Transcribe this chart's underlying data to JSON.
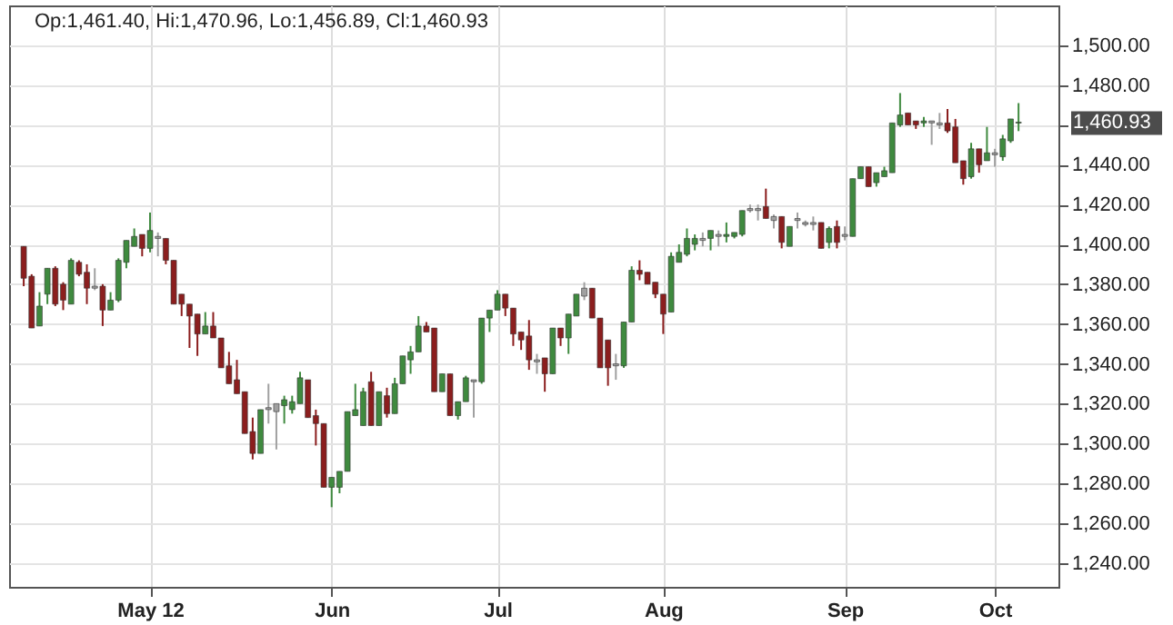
{
  "chart_data": {
    "type": "candlestick",
    "categories": [
      null,
      null,
      null,
      null,
      null,
      null,
      null,
      null,
      null,
      null,
      null,
      null,
      null,
      null,
      null,
      null,
      "May 12",
      null,
      null,
      null,
      null,
      null,
      null,
      null,
      null,
      null,
      null,
      null,
      null,
      null,
      null,
      null,
      null,
      null,
      null,
      null,
      null,
      null,
      null,
      "Jun",
      null,
      null,
      null,
      null,
      null,
      null,
      null,
      null,
      null,
      null,
      null,
      null,
      null,
      null,
      null,
      null,
      null,
      null,
      null,
      null,
      "Jul",
      null,
      null,
      null,
      null,
      null,
      null,
      null,
      null,
      null,
      null,
      null,
      null,
      null,
      null,
      null,
      null,
      null,
      null,
      null,
      null,
      "Aug",
      null,
      null,
      null,
      null,
      null,
      null,
      null,
      null,
      null,
      null,
      null,
      null,
      null,
      null,
      null,
      null,
      null,
      null,
      null,
      null,
      null,
      null,
      "Sep",
      null,
      null,
      null,
      null,
      null,
      null,
      null,
      null,
      null,
      null,
      null,
      null,
      null,
      null,
      null,
      null,
      null,
      null,
      "Oct",
      null,
      null,
      null
    ],
    "ohlc": [
      [
        1399,
        1399,
        1379,
        1383
      ],
      [
        1384,
        1385,
        1358,
        1358
      ],
      [
        1359,
        1376,
        1359,
        1369
      ],
      [
        1375,
        1388,
        1370,
        1388
      ],
      [
        1388,
        1389,
        1369,
        1370
      ],
      [
        1380,
        1381,
        1367,
        1372
      ],
      [
        1370,
        1393,
        1370,
        1392
      ],
      [
        1391,
        1392,
        1384,
        1385
      ],
      [
        1386,
        1390,
        1370,
        1378
      ],
      [
        1379,
        1388,
        1377,
        1378
      ],
      [
        1379,
        1380,
        1359,
        1367
      ],
      [
        1367,
        1376,
        1367,
        1372
      ],
      [
        1372,
        1393,
        1371,
        1392
      ],
      [
        1391,
        1402,
        1388,
        1402
      ],
      [
        1399,
        1408,
        1399,
        1404
      ],
      [
        1405,
        1405,
        1394,
        1398
      ],
      [
        1398,
        1416,
        1396,
        1407
      ],
      [
        1404,
        1406,
        1394,
        1403
      ],
      [
        1403,
        1403,
        1390,
        1392
      ],
      [
        1392,
        1392,
        1370,
        1370
      ],
      [
        1375,
        1375,
        1364,
        1370
      ],
      [
        1370,
        1370,
        1348,
        1364
      ],
      [
        1365,
        1365,
        1344,
        1355
      ],
      [
        1355,
        1366,
        1355,
        1359
      ],
      [
        1359,
        1366,
        1353,
        1353
      ],
      [
        1353,
        1353,
        1338,
        1338
      ],
      [
        1339,
        1346,
        1330,
        1330
      ],
      [
        1332,
        1342,
        1325,
        1325
      ],
      [
        1326,
        1326,
        1305,
        1305
      ],
      [
        1306,
        1313,
        1292,
        1295
      ],
      [
        1295,
        1317,
        1295,
        1317
      ],
      [
        1318,
        1330,
        1310,
        1317
      ],
      [
        1316,
        1320,
        1297,
        1320
      ],
      [
        1319,
        1324,
        1310,
        1322
      ],
      [
        1317,
        1324,
        1315,
        1321
      ],
      [
        1320,
        1336,
        1320,
        1333
      ],
      [
        1332,
        1332,
        1313,
        1313
      ],
      [
        1314,
        1317,
        1299,
        1310
      ],
      [
        1310,
        1310,
        1278,
        1278
      ],
      [
        1278,
        1283,
        1268,
        1283
      ],
      [
        1278,
        1286,
        1275,
        1286
      ],
      [
        1286,
        1316,
        1286,
        1316
      ],
      [
        1314,
        1330,
        1314,
        1317
      ],
      [
        1309,
        1328,
        1309,
        1326
      ],
      [
        1331,
        1336,
        1309,
        1309
      ],
      [
        1309,
        1326,
        1309,
        1326
      ],
      [
        1324,
        1328,
        1313,
        1315
      ],
      [
        1315,
        1333,
        1315,
        1330
      ],
      [
        1330,
        1344,
        1330,
        1344
      ],
      [
        1342,
        1349,
        1335,
        1346
      ],
      [
        1346,
        1364,
        1346,
        1359
      ],
      [
        1359,
        1361,
        1356,
        1356
      ],
      [
        1358,
        1358,
        1326,
        1326
      ],
      [
        1326,
        1335,
        1326,
        1335
      ],
      [
        1335,
        1335,
        1314,
        1314
      ],
      [
        1314,
        1321,
        1312,
        1321
      ],
      [
        1321,
        1334,
        1321,
        1333
      ],
      [
        1332,
        1332,
        1313,
        1331
      ],
      [
        1331,
        1363,
        1330,
        1363
      ],
      [
        1363,
        1367,
        1356,
        1367
      ],
      [
        1367,
        1377,
        1367,
        1375
      ],
      [
        1375,
        1375,
        1364,
        1368
      ],
      [
        1368,
        1368,
        1349,
        1355
      ],
      [
        1356,
        1356,
        1347,
        1352
      ],
      [
        1354,
        1362,
        1337,
        1342
      ],
      [
        1342,
        1345,
        1335,
        1341
      ],
      [
        1343,
        1343,
        1326,
        1335
      ],
      [
        1335,
        1358,
        1335,
        1358
      ],
      [
        1358,
        1358,
        1349,
        1353
      ],
      [
        1353,
        1365,
        1345,
        1365
      ],
      [
        1364,
        1375,
        1364,
        1375
      ],
      [
        1374,
        1381,
        1372,
        1378
      ],
      [
        1378,
        1378,
        1363,
        1363
      ],
      [
        1363,
        1363,
        1338,
        1338
      ],
      [
        1352,
        1352,
        1329,
        1338
      ],
      [
        1340,
        1345,
        1332,
        1339
      ],
      [
        1339,
        1361,
        1338,
        1361
      ],
      [
        1361,
        1389,
        1361,
        1387
      ],
      [
        1387,
        1392,
        1382,
        1385
      ],
      [
        1386,
        1386,
        1380,
        1380
      ],
      [
        1381,
        1381,
        1373,
        1375
      ],
      [
        1375,
        1375,
        1355,
        1365
      ],
      [
        1366,
        1396,
        1366,
        1394
      ],
      [
        1391,
        1400,
        1391,
        1396
      ],
      [
        1395,
        1408,
        1394,
        1403
      ],
      [
        1400,
        1405,
        1397,
        1403
      ],
      [
        1403,
        1406,
        1399,
        1402
      ],
      [
        1403,
        1407,
        1397,
        1407
      ],
      [
        1404,
        1407,
        1399,
        1405
      ],
      [
        1404,
        1411,
        1401,
        1405
      ],
      [
        1404,
        1406,
        1403,
        1406
      ],
      [
        1405,
        1417,
        1404,
        1417
      ],
      [
        1417,
        1420,
        1416,
        1418
      ],
      [
        1417,
        1420,
        1412,
        1418
      ],
      [
        1419,
        1428,
        1413,
        1413
      ],
      [
        1414,
        1415,
        1408,
        1412
      ],
      [
        1414,
        1414,
        1398,
        1401
      ],
      [
        1399,
        1409,
        1399,
        1409
      ],
      [
        1412,
        1416,
        1408,
        1413
      ],
      [
        1410,
        1412,
        1409,
        1411
      ],
      [
        1411,
        1414,
        1407,
        1410
      ],
      [
        1411,
        1411,
        1398,
        1398
      ],
      [
        1401,
        1409,
        1398,
        1408
      ],
      [
        1409,
        1412,
        1398,
        1401
      ],
      [
        1404,
        1409,
        1402,
        1405
      ],
      [
        1404,
        1433,
        1404,
        1433
      ],
      [
        1433,
        1439,
        1433,
        1439
      ],
      [
        1439,
        1439,
        1429,
        1429
      ],
      [
        1431,
        1436,
        1429,
        1436
      ],
      [
        1434,
        1439,
        1434,
        1437
      ],
      [
        1436,
        1461,
        1436,
        1461
      ],
      [
        1460,
        1476,
        1459,
        1465
      ],
      [
        1466,
        1466,
        1460,
        1460
      ],
      [
        1462,
        1462,
        1458,
        1460
      ],
      [
        1461,
        1464,
        1459,
        1462
      ],
      [
        1462,
        1462,
        1450,
        1461
      ],
      [
        1460,
        1466,
        1458,
        1461
      ],
      [
        1461,
        1468,
        1456,
        1457
      ],
      [
        1459,
        1463,
        1441,
        1441
      ],
      [
        1442,
        1442,
        1430,
        1433
      ],
      [
        1434,
        1451,
        1433,
        1448
      ],
      [
        1448,
        1448,
        1436,
        1440
      ],
      [
        1442,
        1459,
        1442,
        1446
      ],
      [
        1446,
        1448,
        1439,
        1445
      ],
      [
        1444,
        1455,
        1442,
        1453
      ],
      [
        1452,
        1463,
        1451,
        1463
      ],
      [
        1461.4,
        1470.96,
        1456.89,
        1460.93
      ]
    ],
    "colors": [
      "#8b1e1e",
      "#8b1e1e",
      "#3f8a3f",
      "#3f8a3f",
      "#8b1e1e",
      "#8b1e1e",
      "#3f8a3f",
      "#8b1e1e",
      "#8b1e1e",
      "#a0a0a0",
      "#8b1e1e",
      "#3f8a3f",
      "#3f8a3f",
      "#3f8a3f",
      "#3f8a3f",
      "#8b1e1e",
      "#3f8a3f",
      "#a0a0a0",
      "#8b1e1e",
      "#8b1e1e",
      "#8b1e1e",
      "#8b1e1e",
      "#8b1e1e",
      "#3f8a3f",
      "#8b1e1e",
      "#8b1e1e",
      "#8b1e1e",
      "#8b1e1e",
      "#8b1e1e",
      "#8b1e1e",
      "#3f8a3f",
      "#a0a0a0",
      "#a0a0a0",
      "#3f8a3f",
      "#3f8a3f",
      "#3f8a3f",
      "#8b1e1e",
      "#8b1e1e",
      "#8b1e1e",
      "#3f8a3f",
      "#3f8a3f",
      "#3f8a3f",
      "#3f8a3f",
      "#3f8a3f",
      "#8b1e1e",
      "#3f8a3f",
      "#8b1e1e",
      "#3f8a3f",
      "#3f8a3f",
      "#3f8a3f",
      "#3f8a3f",
      "#8b1e1e",
      "#8b1e1e",
      "#3f8a3f",
      "#8b1e1e",
      "#3f8a3f",
      "#3f8a3f",
      "#a0a0a0",
      "#3f8a3f",
      "#3f8a3f",
      "#3f8a3f",
      "#8b1e1e",
      "#8b1e1e",
      "#8b1e1e",
      "#8b1e1e",
      "#a0a0a0",
      "#8b1e1e",
      "#3f8a3f",
      "#8b1e1e",
      "#3f8a3f",
      "#3f8a3f",
      "#a0a0a0",
      "#8b1e1e",
      "#8b1e1e",
      "#8b1e1e",
      "#a0a0a0",
      "#3f8a3f",
      "#3f8a3f",
      "#8b1e1e",
      "#8b1e1e",
      "#8b1e1e",
      "#8b1e1e",
      "#3f8a3f",
      "#3f8a3f",
      "#3f8a3f",
      "#3f8a3f",
      "#a0a0a0",
      "#3f8a3f",
      "#a0a0a0",
      "#3f8a3f",
      "#3f8a3f",
      "#3f8a3f",
      "#a0a0a0",
      "#a0a0a0",
      "#8b1e1e",
      "#a0a0a0",
      "#8b1e1e",
      "#3f8a3f",
      "#a0a0a0",
      "#a0a0a0",
      "#a0a0a0",
      "#8b1e1e",
      "#3f8a3f",
      "#8b1e1e",
      "#a0a0a0",
      "#3f8a3f",
      "#3f8a3f",
      "#8b1e1e",
      "#3f8a3f",
      "#3f8a3f",
      "#3f8a3f",
      "#3f8a3f",
      "#8b1e1e",
      "#8b1e1e",
      "#3f8a3f",
      "#a0a0a0",
      "#a0a0a0",
      "#8b1e1e",
      "#8b1e1e",
      "#8b1e1e",
      "#3f8a3f",
      "#8b1e1e",
      "#3f8a3f",
      "#a0a0a0",
      "#3f8a3f",
      "#3f8a3f",
      "#3f8a3f"
    ],
    "ylim": [
      1228,
      1520
    ],
    "yticks": [
      {
        "value": 1240,
        "label": "1,240.00"
      },
      {
        "value": 1260,
        "label": "1,260.00"
      },
      {
        "value": 1280,
        "label": "1,280.00"
      },
      {
        "value": 1300,
        "label": "1,300.00"
      },
      {
        "value": 1320,
        "label": "1,320.00"
      },
      {
        "value": 1340,
        "label": "1,340.00"
      },
      {
        "value": 1360,
        "label": "1,360.00"
      },
      {
        "value": 1380,
        "label": "1,380.00"
      },
      {
        "value": 1400,
        "label": "1,400.00"
      },
      {
        "value": 1420,
        "label": "1,420.00"
      },
      {
        "value": 1440,
        "label": "1,440.00"
      },
      {
        "value": 1460,
        "label": null
      },
      {
        "value": 1480,
        "label": "1,480.00"
      },
      {
        "value": 1500,
        "label": "1,500.00"
      }
    ],
    "grid": true,
    "annotations": [
      "Op:1,461.40, Hi:1,470.96, Lo:1,456.89, Cl:1,460.93",
      "1,460.93"
    ]
  }
}
